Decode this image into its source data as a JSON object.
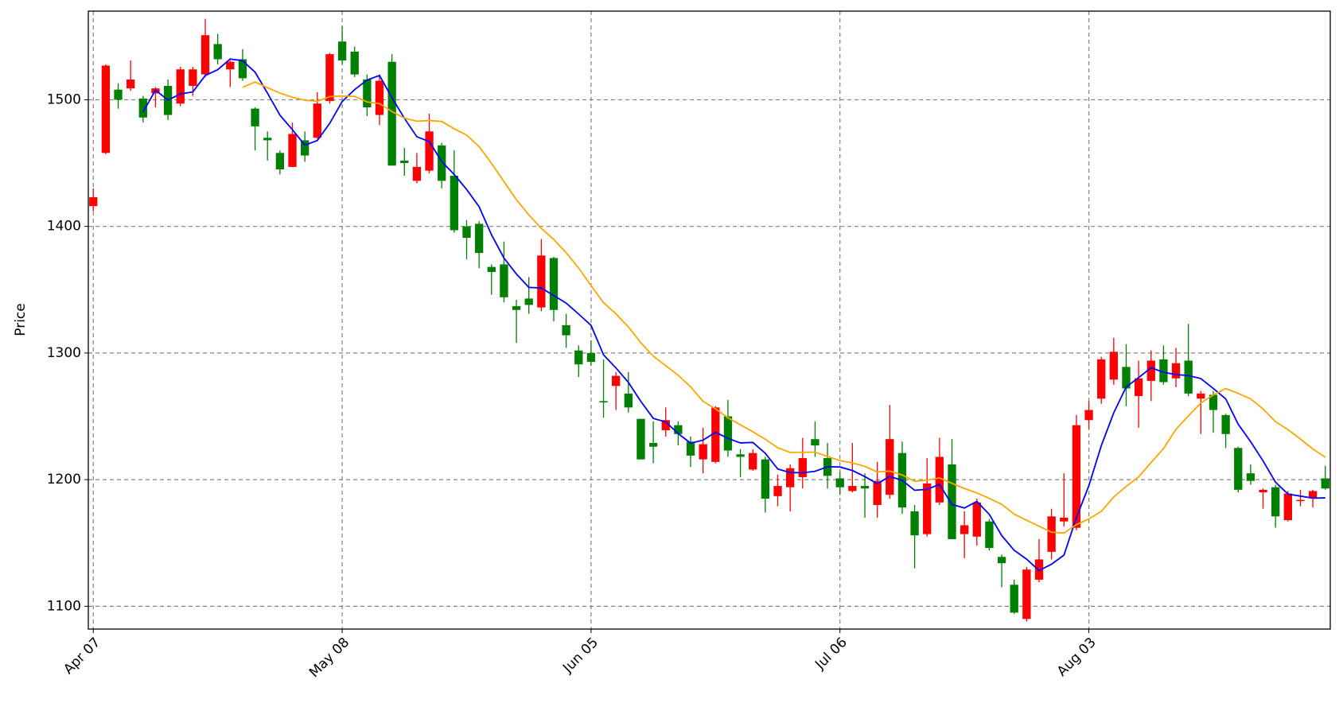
{
  "chart_data": {
    "type": "candlestick",
    "ylabel": "Price",
    "categories": [
      "Apr 07",
      null,
      null,
      null,
      null,
      null,
      null,
      null,
      null,
      null,
      null,
      null,
      null,
      null,
      null,
      null,
      null,
      null,
      null,
      null,
      "May 08",
      null,
      null,
      null,
      null,
      null,
      null,
      null,
      null,
      null,
      null,
      null,
      null,
      null,
      null,
      null,
      null,
      null,
      null,
      null,
      "Jun 05",
      null,
      null,
      null,
      null,
      null,
      null,
      null,
      null,
      null,
      null,
      null,
      null,
      null,
      null,
      null,
      null,
      null,
      null,
      null,
      "Jul 06",
      null,
      null,
      null,
      null,
      null,
      null,
      null,
      null,
      null,
      null,
      null,
      null,
      null,
      null,
      null,
      null,
      null,
      null,
      null,
      "Aug 03",
      null,
      null,
      null,
      null,
      null,
      null,
      null,
      null,
      null,
      null,
      null,
      null,
      null,
      null,
      null,
      null,
      null,
      null,
      null
    ],
    "open": [
      1416,
      1458,
      1508,
      1509,
      1501,
      1505,
      1511,
      1497,
      1511,
      1520,
      1544,
      1524,
      1532,
      1493,
      1470,
      1458,
      1447,
      1468,
      1470,
      1499,
      1546,
      1538,
      1516,
      1488,
      1530,
      1452,
      1436,
      1444,
      1464,
      1440,
      1400,
      1402,
      1368,
      1370,
      1337,
      1343,
      1336,
      1375,
      1322,
      1302,
      1300,
      1262,
      1274,
      1268,
      1248,
      1229,
      1239,
      1243,
      1230,
      1216,
      1214,
      1250,
      1220,
      1208,
      1216,
      1187,
      1194,
      1202,
      1232,
      1217,
      1201,
      1191,
      1195,
      1180,
      1188,
      1221,
      1175,
      1157,
      1182,
      1212,
      1157,
      1155,
      1167,
      1139,
      1117,
      1090,
      1121,
      1143,
      1167,
      1162,
      1247,
      1264,
      1279,
      1289,
      1266,
      1278,
      1295,
      1280,
      1294,
      1264,
      1267,
      1251,
      1225,
      1205,
      1190,
      1194,
      1168,
      1183,
      1186,
      1201
    ],
    "high": [
      1430,
      1528,
      1513,
      1531,
      1503,
      1510,
      1516,
      1526,
      1526,
      1564,
      1552,
      1531,
      1540,
      1494,
      1475,
      1460,
      1482,
      1475,
      1506,
      1537,
      1558,
      1542,
      1520,
      1520,
      1536,
      1462,
      1458,
      1489,
      1466,
      1460,
      1405,
      1404,
      1370,
      1388,
      1342,
      1360,
      1390,
      1376,
      1331,
      1306,
      1310,
      1295,
      1285,
      1285,
      1248,
      1246,
      1257,
      1246,
      1234,
      1241,
      1258,
      1263,
      1224,
      1224,
      1218,
      1204,
      1212,
      1233,
      1246,
      1229,
      1206,
      1229,
      1205,
      1214,
      1259,
      1230,
      1180,
      1217,
      1233,
      1232,
      1175,
      1185,
      1169,
      1141,
      1121,
      1131,
      1153,
      1177,
      1205,
      1251,
      1262,
      1297,
      1312,
      1307,
      1294,
      1302,
      1306,
      1304,
      1323,
      1270,
      1270,
      1252,
      1226,
      1212,
      1193,
      1196,
      1191,
      1192,
      1192,
      1211
    ],
    "low": [
      1412,
      1457,
      1493,
      1507,
      1482,
      1494,
      1484,
      1495,
      1503,
      1518,
      1528,
      1510,
      1515,
      1460,
      1452,
      1441,
      1447,
      1451,
      1469,
      1497,
      1528,
      1518,
      1487,
      1480,
      1448,
      1440,
      1434,
      1442,
      1430,
      1395,
      1374,
      1367,
      1346,
      1340,
      1308,
      1331,
      1333,
      1325,
      1304,
      1281,
      1290,
      1249,
      1255,
      1253,
      1216,
      1213,
      1234,
      1227,
      1210,
      1205,
      1213,
      1218,
      1202,
      1207,
      1174,
      1179,
      1175,
      1193,
      1218,
      1193,
      1188,
      1190,
      1170,
      1170,
      1185,
      1173,
      1130,
      1155,
      1180,
      1153,
      1138,
      1148,
      1144,
      1115,
      1094,
      1088,
      1119,
      1137,
      1163,
      1160,
      1240,
      1260,
      1275,
      1258,
      1241,
      1262,
      1275,
      1273,
      1266,
      1236,
      1237,
      1225,
      1190,
      1196,
      1177,
      1162,
      1167,
      1179,
      1178,
      1192
    ],
    "close": [
      1423,
      1527,
      1500,
      1516,
      1486,
      1509,
      1488,
      1524,
      1524,
      1551,
      1532,
      1530,
      1517,
      1479,
      1468,
      1445,
      1473,
      1456,
      1497,
      1536,
      1531,
      1520,
      1494,
      1515,
      1448,
      1450,
      1447,
      1475,
      1436,
      1397,
      1391,
      1379,
      1364,
      1344,
      1334,
      1338,
      1377,
      1334,
      1314,
      1291,
      1293,
      1261,
      1282,
      1257,
      1216,
      1226,
      1247,
      1236,
      1219,
      1228,
      1257,
      1223,
      1218,
      1221,
      1185,
      1195,
      1209,
      1217,
      1227,
      1203,
      1194,
      1195,
      1193,
      1199,
      1232,
      1178,
      1156,
      1197,
      1218,
      1153,
      1164,
      1182,
      1146,
      1134,
      1095,
      1129,
      1137,
      1171,
      1170,
      1243,
      1255,
      1295,
      1301,
      1272,
      1280,
      1294,
      1277,
      1292,
      1268,
      1268,
      1255,
      1236,
      1192,
      1199,
      1192,
      1171,
      1189,
      1184,
      1191,
      1193
    ],
    "up_color": "red",
    "down_color": "green",
    "lines": [
      {
        "color": "blue",
        "values": [
          null,
          null,
          null,
          null,
          1490.4,
          1507.6,
          1499.8,
          1504.6,
          1506.2,
          1519.2,
          1523.8,
          1532.2,
          1530.8,
          1521.8,
          1505.2,
          1487.8,
          1476.4,
          1464.2,
          1467.8,
          1481.4,
          1498.6,
          1508,
          1515.6,
          1519.2,
          1501.6,
          1485.4,
          1470.8,
          1467,
          1451.2,
          1441,
          1429.2,
          1415.6,
          1393.4,
          1375,
          1362.4,
          1351.8,
          1351.4,
          1345.4,
          1339.4,
          1330.8,
          1321.8,
          1298.6,
          1288.2,
          1276.8,
          1261.8,
          1248.4,
          1245.6,
          1236.4,
          1228.8,
          1231.2,
          1237.4,
          1232.6,
          1229,
          1229.4,
          1220.8,
          1208.4,
          1205.6,
          1205.4,
          1206.6,
          1210.2,
          1210,
          1207.2,
          1202.4,
          1196.8,
          1202.6,
          1199.4,
          1191.6,
          1192.4,
          1196.2,
          1180.4,
          1177.6,
          1182.8,
          1172.6,
          1155.8,
          1144.2,
          1137.2,
          1128.2,
          1133.2,
          1140.4,
          1170,
          1195.2,
          1226.8,
          1252.8,
          1273.2,
          1280.6,
          1288.4,
          1284.8,
          1283,
          1282.2,
          1279.8,
          1272,
          1263.8,
          1243.8,
          1230,
          1214.8,
          1198,
          1188.6,
          1187,
          1185.4,
          1185.6
        ]
      },
      {
        "color": "orange",
        "values": [
          null,
          null,
          null,
          null,
          null,
          null,
          null,
          null,
          null,
          null,
          null,
          null,
          1509.8,
          1514.1,
          1509.5,
          1505.3,
          1502.0,
          1499.7,
          1498.8,
          1502.5,
          1503.0,
          1502.7,
          1498.3,
          1497.0,
          1490.7,
          1485.5,
          1483.1,
          1483.6,
          1482.9,
          1477.1,
          1472.1,
          1463.0,
          1449.8,
          1435.4,
          1421.1,
          1409.1,
          1398.5,
          1389.7,
          1379.2,
          1367.2,
          1353.2,
          1339.8,
          1330.9,
          1320.6,
          1308.1,
          1297.5,
          1290.0,
          1282.5,
          1273.3,
          1261.8,
          1255.9,
          1248.9,
          1243.3,
          1237.8,
          1231.9,
          1225.2,
          1221.5,
          1221.6,
          1221.7,
          1218.3,
          1215.1,
          1213.2,
          1210.5,
          1206.1,
          1206.8,
          1203.7,
          1198.7,
          1199.6,
          1201.4,
          1197.1,
          1193.0,
          1189.5,
          1185.2,
          1180.5,
          1172.8,
          1167.9,
          1163.2,
          1158.5,
          1157.8,
          1164.5,
          1169.0,
          1174.9,
          1186.3,
          1194.6,
          1202.2,
          1213.5,
          1224.5,
          1239.7,
          1250.4,
          1260.5,
          1266.9,
          1272.0,
          1268.1,
          1263.8,
          1255.8,
          1245.8,
          1239.5,
          1232.1,
          1224.2,
          1217.7
        ]
      }
    ],
    "xlim": [
      -0.4,
      99.4
    ],
    "ylim": [
      1082,
      1570
    ],
    "yticks": [
      1100,
      1200,
      1300,
      1400,
      1500
    ],
    "grid": true
  }
}
